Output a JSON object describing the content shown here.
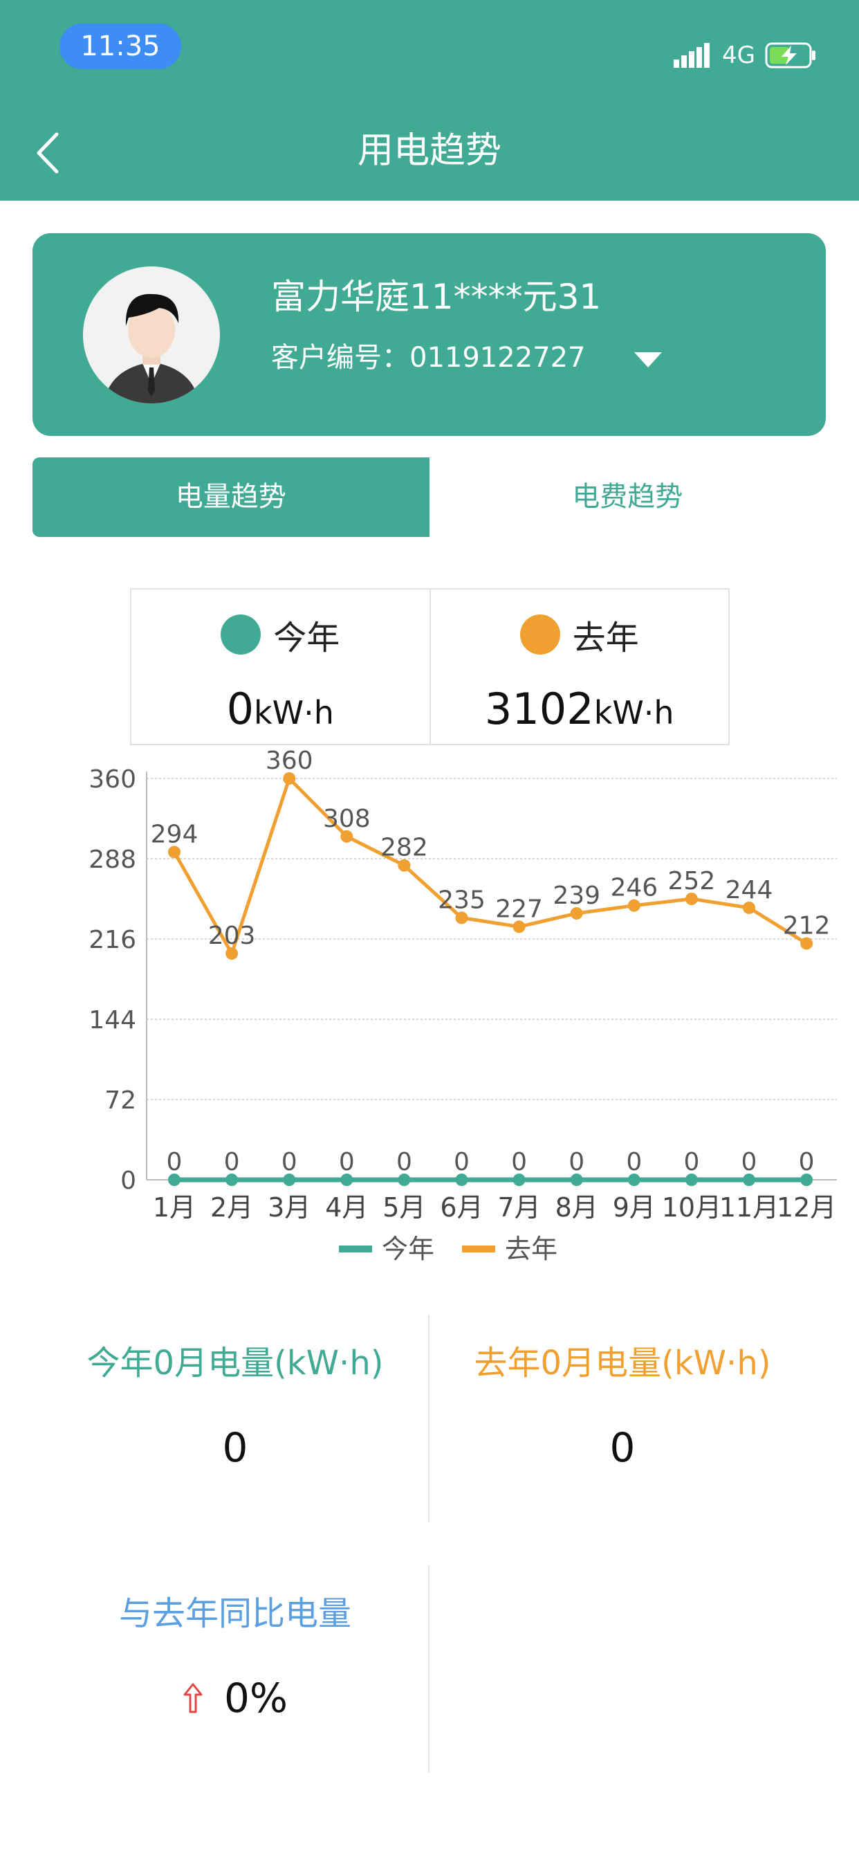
{
  "status_bar": {
    "time": "11:35",
    "network": "4G"
  },
  "header": {
    "title": "用电趋势"
  },
  "account": {
    "name": "富力华庭11****元31",
    "customer_no": "客户编号：0119122727"
  },
  "tabs": [
    {
      "label": "电量趋势",
      "active": true
    },
    {
      "label": "电费趋势",
      "active": false
    }
  ],
  "summary": {
    "this_year": {
      "label": "今年",
      "value": "0",
      "unit": "kW·h",
      "color": "#41aa94"
    },
    "last_year": {
      "label": "去年",
      "value": "3102",
      "unit": "kW·h",
      "color": "#f0a030"
    }
  },
  "chart_data": {
    "type": "line",
    "categories": [
      "1月",
      "2月",
      "3月",
      "4月",
      "5月",
      "6月",
      "7月",
      "8月",
      "9月",
      "10月",
      "11月",
      "12月"
    ],
    "series": [
      {
        "name": "今年",
        "color": "#41aa94",
        "values": [
          0,
          0,
          0,
          0,
          0,
          0,
          0,
          0,
          0,
          0,
          0,
          0
        ]
      },
      {
        "name": "去年",
        "color": "#f0a030",
        "values": [
          294,
          203,
          360,
          308,
          282,
          235,
          227,
          239,
          246,
          252,
          244,
          212
        ]
      }
    ],
    "yticks": [
      "0",
      "72",
      "144",
      "216",
      "288",
      "360"
    ],
    "ylim": [
      0,
      360
    ],
    "grid": true,
    "legend": "bottom-center"
  },
  "stats": {
    "this_month": {
      "title": "今年0月电量(kW·h)",
      "value": "0",
      "color": "#41aa94"
    },
    "last_month": {
      "title": "去年0月电量(kW·h)",
      "value": "0",
      "color": "#f0a030"
    },
    "yoy": {
      "title": "与去年同比电量",
      "value": "0%",
      "color": "#5b9fe0",
      "arrow_color": "#e04848"
    }
  }
}
